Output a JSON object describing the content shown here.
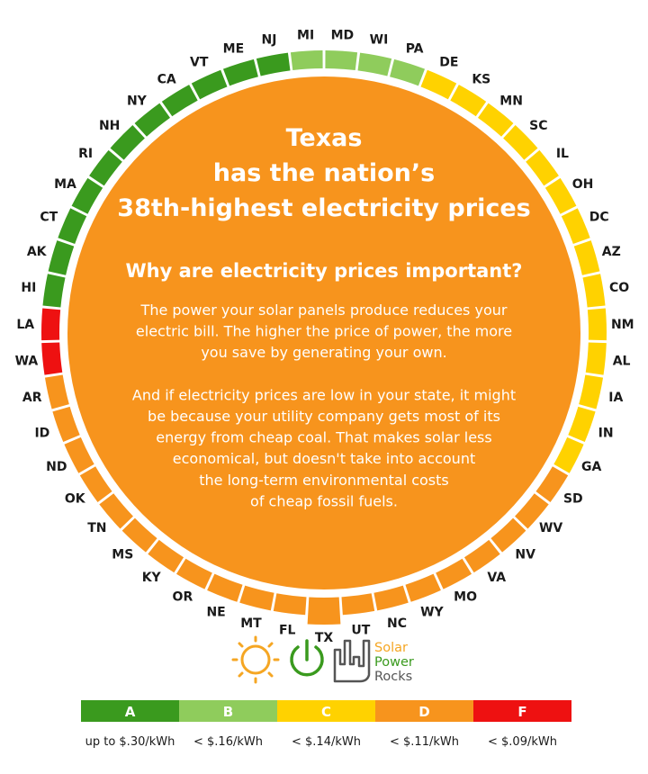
{
  "title": {
    "line1": "Texas",
    "line2": "has the nation’s",
    "line3": "38th-highest electricity prices"
  },
  "subtitle": "Why are electricity prices important?",
  "body": [
    "The power your solar panels produce reduces your",
    "electric bill. The higher the price of power, the more",
    "you save by generating your own.",
    "",
    "And if electricity prices are low in your state, it might",
    "be because your utility company gets most of its",
    "energy from cheap coal. That makes solar less",
    "economical, but doesn't take into account",
    "the long-term environmental costs",
    "of cheap fossil fuels."
  ],
  "logo": {
    "line1": "Solar",
    "line2": "Power",
    "line3": "Rocks",
    "sun_icon": "sun-icon",
    "power_icon": "power-icon",
    "hand_icon": "rock-hand-icon",
    "colors": {
      "solar": "#f5a623",
      "power": "#3a9a1e",
      "rocks": "#555555"
    }
  },
  "chart_data": {
    "type": "ring",
    "highlight": "TX",
    "grade_colors": {
      "A": "#3a9a1e",
      "B": "#8fcc5c",
      "C": "#ffd200",
      "D": "#f7941d",
      "F": "#ee1111"
    },
    "states": [
      {
        "name": "MI",
        "grade": "B"
      },
      {
        "name": "MD",
        "grade": "B"
      },
      {
        "name": "WI",
        "grade": "B"
      },
      {
        "name": "PA",
        "grade": "B"
      },
      {
        "name": "DE",
        "grade": "C"
      },
      {
        "name": "KS",
        "grade": "C"
      },
      {
        "name": "MN",
        "grade": "C"
      },
      {
        "name": "SC",
        "grade": "C"
      },
      {
        "name": "IL",
        "grade": "C"
      },
      {
        "name": "OH",
        "grade": "C"
      },
      {
        "name": "DC",
        "grade": "C"
      },
      {
        "name": "AZ",
        "grade": "C"
      },
      {
        "name": "CO",
        "grade": "C"
      },
      {
        "name": "NM",
        "grade": "C"
      },
      {
        "name": "AL",
        "grade": "C"
      },
      {
        "name": "IA",
        "grade": "C"
      },
      {
        "name": "IN",
        "grade": "C"
      },
      {
        "name": "GA",
        "grade": "C"
      },
      {
        "name": "SD",
        "grade": "D"
      },
      {
        "name": "WV",
        "grade": "D"
      },
      {
        "name": "NV",
        "grade": "D"
      },
      {
        "name": "VA",
        "grade": "D"
      },
      {
        "name": "MO",
        "grade": "D"
      },
      {
        "name": "WY",
        "grade": "D"
      },
      {
        "name": "NC",
        "grade": "D"
      },
      {
        "name": "UT",
        "grade": "D"
      },
      {
        "name": "TX",
        "grade": "D"
      },
      {
        "name": "FL",
        "grade": "D"
      },
      {
        "name": "MT",
        "grade": "D"
      },
      {
        "name": "NE",
        "grade": "D"
      },
      {
        "name": "OR",
        "grade": "D"
      },
      {
        "name": "KY",
        "grade": "D"
      },
      {
        "name": "MS",
        "grade": "D"
      },
      {
        "name": "TN",
        "grade": "D"
      },
      {
        "name": "OK",
        "grade": "D"
      },
      {
        "name": "ND",
        "grade": "D"
      },
      {
        "name": "ID",
        "grade": "D"
      },
      {
        "name": "AR",
        "grade": "D"
      },
      {
        "name": "WA",
        "grade": "F"
      },
      {
        "name": "LA",
        "grade": "F"
      },
      {
        "name": "HI",
        "grade": "A"
      },
      {
        "name": "AK",
        "grade": "A"
      },
      {
        "name": "CT",
        "grade": "A"
      },
      {
        "name": "MA",
        "grade": "A"
      },
      {
        "name": "RI",
        "grade": "A"
      },
      {
        "name": "NH",
        "grade": "A"
      },
      {
        "name": "NY",
        "grade": "A"
      },
      {
        "name": "CA",
        "grade": "A"
      },
      {
        "name": "VT",
        "grade": "A"
      },
      {
        "name": "ME",
        "grade": "A"
      },
      {
        "name": "NJ",
        "grade": "A"
      }
    ],
    "legend": [
      {
        "grade": "A",
        "range": "up to $.30/kWh"
      },
      {
        "grade": "B",
        "range": "< $.16/kWh"
      },
      {
        "grade": "C",
        "range": "< $.14/kWh"
      },
      {
        "grade": "D",
        "range": "< $.11/kWh"
      },
      {
        "grade": "F",
        "range": "< $.09/kWh"
      }
    ]
  }
}
